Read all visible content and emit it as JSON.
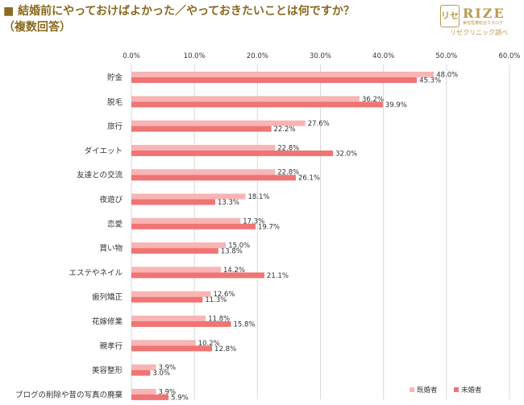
{
  "header": {
    "title_line1": "■ 結婚前にやっておけばよかった／やっておきたいことは何ですか？",
    "title_line2": "（複数回答）"
  },
  "logo": {
    "mark": "リセ",
    "wordmark": "RIZE",
    "tagline": "美容医療総合カタログ",
    "note": "リゼクリニック調べ"
  },
  "colors": {
    "married": "#f9b4b4",
    "unmarried": "#f07474",
    "grid": "#d9d9d9",
    "title": "#8a6a1e"
  },
  "chart_data": {
    "type": "bar",
    "orientation": "horizontal",
    "categories": [
      "貯金",
      "脱毛",
      "旅行",
      "ダイエット",
      "友達との交流",
      "夜遊び",
      "恋愛",
      "買い物",
      "エステやネイル",
      "歯列矯正",
      "花嫁修業",
      "親孝行",
      "美容整形",
      "ブログの削除や昔の写真の廃棄"
    ],
    "series": [
      {
        "name": "既婚者",
        "values": [
          48.0,
          36.2,
          27.6,
          22.8,
          22.8,
          18.1,
          17.3,
          15.0,
          14.2,
          12.6,
          11.8,
          10.2,
          3.9,
          3.9
        ]
      },
      {
        "name": "未婚者",
        "values": [
          45.3,
          39.9,
          22.2,
          32.0,
          26.1,
          13.3,
          19.7,
          13.8,
          21.1,
          11.3,
          15.8,
          12.8,
          3.0,
          5.9
        ]
      }
    ],
    "value_labels": [
      [
        "48.0%",
        "36.2%",
        "27.6%",
        "22.8%",
        "22.8%",
        "18.1%",
        "17.3%",
        "15.0%",
        "14.2%",
        "12.6%",
        "11.8%",
        "10.2%",
        "3.9%",
        "3.9%"
      ],
      [
        "45.3%",
        "39.9%",
        "22.2%",
        "32.0%",
        "26.1%",
        "13.3%",
        "19.7%",
        "13.8%",
        "21.1%",
        "11.3%",
        "15.8%",
        "12.8%",
        "3.0%",
        "5.9%"
      ]
    ],
    "xlim": [
      0,
      60
    ],
    "xticks": [
      0,
      10,
      20,
      30,
      40,
      50,
      60
    ],
    "xtick_labels": [
      "0.0%",
      "10.0%",
      "20.0%",
      "30.0%",
      "40.0%",
      "50.0%",
      "60.0%"
    ],
    "xaxis_position": "top",
    "grid": true,
    "legend_position": "bottom-right"
  }
}
